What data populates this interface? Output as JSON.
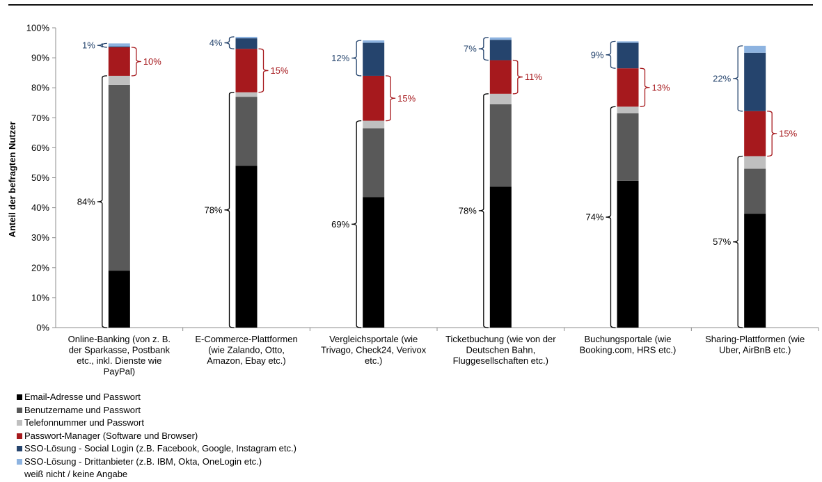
{
  "chart_data": {
    "type": "stacked-bar",
    "ylabel": "Anteil der befragten Nutzer",
    "ylim": [
      0,
      100
    ],
    "yticks": [
      "0%",
      "10%",
      "20%",
      "30%",
      "40%",
      "50%",
      "60%",
      "70%",
      "80%",
      "90%",
      "100%"
    ],
    "categories": [
      [
        "Online-Banking (von z. B.",
        "der Sparkasse, Postbank",
        "etc., inkl. Dienste wie",
        "PayPal)"
      ],
      [
        "E-Commerce-Plattformen",
        "(wie Zalando, Otto,",
        "Amazon, Ebay etc.)"
      ],
      [
        "Vergleichsportale (wie",
        "Trivago, Check24, Verivox",
        "etc.)"
      ],
      [
        "Ticketbuchung (wie von der",
        "Deutschen Bahn,",
        "Fluggesellschaften etc.)"
      ],
      [
        "Buchungsportale (wie",
        "Booking.com, HRS etc.)"
      ],
      [
        "Sharing-Plattformen (wie",
        "Uber, AirBnB etc.)"
      ]
    ],
    "series": [
      {
        "name": "Email-Adresse und Passwort",
        "color": "#000000",
        "values": [
          19,
          54,
          43.5,
          47,
          49,
          38
        ]
      },
      {
        "name": "Benutzername und Passwort",
        "color": "#595959",
        "values": [
          62,
          23,
          23,
          27.5,
          22.5,
          15
        ]
      },
      {
        "name": "Telefonnummer und Passwort",
        "color": "#bfbfbf",
        "values": [
          3,
          1.5,
          2.5,
          3.5,
          2.2,
          4.2
        ]
      },
      {
        "name": "Passwort-Manager (Software und Browser)",
        "color": "#a6191d",
        "values": [
          9.5,
          14.5,
          15,
          11.2,
          12.8,
          15
        ]
      },
      {
        "name": "SSO-Lösung - Social Login (z.B. Facebook, Google, Instagram etc.)",
        "color": "#25446d",
        "values": [
          0.3,
          3.5,
          11,
          6.8,
          8.5,
          19.5
        ]
      },
      {
        "name": "SSO-Lösung - Drittanbieter (z.B. IBM, Okta, OneLogin etc.)",
        "color": "#8db3e0",
        "values": [
          1,
          0.5,
          0.8,
          0.8,
          0.5,
          2.3
        ]
      },
      {
        "name": "weiß nicht / keine Angabe",
        "color": "#ffffff",
        "values": [
          5.2,
          3,
          3.7,
          3.2,
          4.5,
          6
        ]
      }
    ],
    "annotations": {
      "bottom": {
        "labels": [
          "84%",
          "78%",
          "69%",
          "78%",
          "74%",
          "57%"
        ],
        "color": "#000000"
      },
      "pm": {
        "labels": [
          "10%",
          "15%",
          "15%",
          "11%",
          "13%",
          "15%"
        ],
        "color": "#a6191d"
      },
      "sso": {
        "labels": [
          "1%",
          "4%",
          "12%",
          "7%",
          "9%",
          "22%"
        ],
        "color": "#25446d"
      }
    },
    "legend_position": "bottom-left",
    "grid": false
  }
}
